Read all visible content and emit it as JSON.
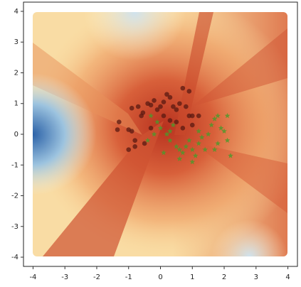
{
  "chart_data": {
    "type": "scatter",
    "xlim": [
      -4.3,
      4.3
    ],
    "ylim": [
      -4.3,
      4.3
    ],
    "xticks": [
      -4,
      -3,
      -2,
      -1,
      0,
      1,
      2,
      3,
      4
    ],
    "yticks": [
      -4,
      -3,
      -2,
      -1,
      0,
      1,
      2,
      3,
      4
    ],
    "series": [
      {
        "color": "#5a1a12",
        "marker": "circle",
        "x": [
          -1.3,
          -1.35,
          -1.0,
          -0.9,
          -1.0,
          -0.8,
          -0.9,
          -0.7,
          -0.6,
          -0.55,
          -0.4,
          -0.3,
          -0.2,
          -0.1,
          0.0,
          0.1,
          0.2,
          0.3,
          0.4,
          0.5,
          0.6,
          0.7,
          0.8,
          0.9,
          1.0,
          1.2,
          1.0,
          0.3,
          0.5,
          0.7,
          -0.3,
          -0.5,
          0.1,
          0.9,
          -0.8
        ],
        "values": [
          0.4,
          0.15,
          0.15,
          0.1,
          -0.5,
          -0.4,
          0.85,
          0.9,
          0.6,
          0.7,
          1.0,
          0.95,
          1.1,
          0.8,
          0.9,
          1.05,
          1.3,
          1.2,
          0.9,
          0.8,
          1.0,
          1.5,
          0.9,
          1.4,
          0.6,
          0.6,
          0.3,
          0.45,
          0.4,
          0.2,
          0.2,
          -0.3,
          0.6,
          0.6,
          -0.2
        ]
      },
      {
        "color": "#4a9a2a",
        "marker": "star",
        "x": [
          -0.3,
          -0.1,
          0.0,
          0.2,
          0.3,
          0.5,
          0.6,
          0.7,
          0.8,
          1.0,
          1.1,
          1.2,
          1.3,
          1.5,
          1.6,
          1.7,
          1.8,
          1.9,
          2.0,
          2.1,
          2.2,
          2.1,
          1.8,
          1.4,
          0.9,
          0.4,
          -0.4,
          0.1,
          0.6,
          1.0,
          0.3,
          1.2,
          1.7,
          -0.2
        ],
        "values": [
          0.6,
          0.4,
          0.2,
          0.0,
          -0.2,
          -0.4,
          -0.5,
          -0.6,
          -0.4,
          -0.5,
          -0.7,
          -0.3,
          -0.1,
          0.0,
          0.3,
          0.5,
          0.6,
          0.2,
          0.1,
          -0.2,
          -0.7,
          0.6,
          -0.3,
          -0.5,
          -0.2,
          0.3,
          -0.2,
          -0.6,
          -0.8,
          -0.9,
          0.1,
          0.1,
          -0.5,
          0.0
        ]
      }
    ]
  }
}
